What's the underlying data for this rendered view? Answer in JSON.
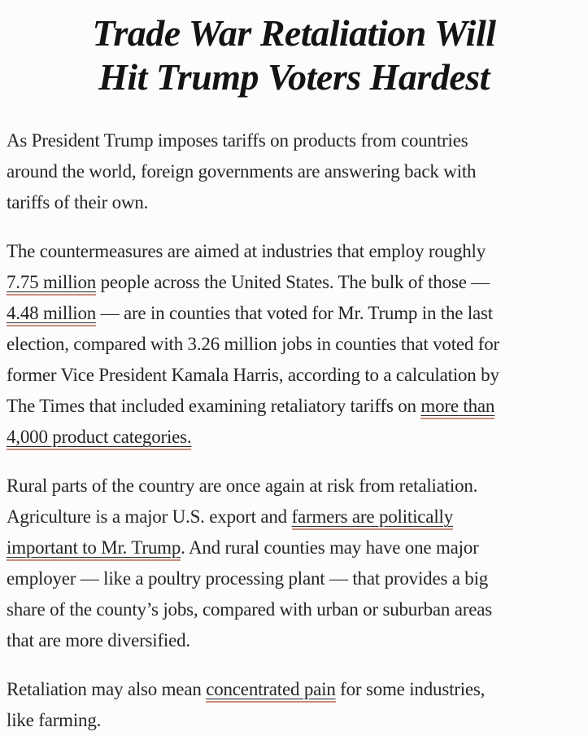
{
  "headline": {
    "lines": [
      "Trade War Retaliation Will",
      "Hit Trump Voters Hardest"
    ]
  },
  "article": {
    "paragraphs": [
      {
        "lines": [
          [
            {
              "t": "As President Trump imposes tariffs on products from countries"
            }
          ],
          [
            {
              "t": "around the world, foreign governments are answering back with"
            }
          ],
          [
            {
              "t": "tariffs of their own."
            }
          ]
        ]
      },
      {
        "lines": [
          [
            {
              "t": "The countermeasures are aimed at industries that employ roughly"
            }
          ],
          [
            {
              "t": "7.75 million",
              "link": true
            },
            {
              "t": " people across the United States. The bulk of those —"
            }
          ],
          [
            {
              "t": "4.48 million",
              "link": true
            },
            {
              "t": " — are in counties that voted for Mr. Trump in the last"
            }
          ],
          [
            {
              "t": "election, compared with 3.26 million jobs in counties that voted for"
            }
          ],
          [
            {
              "t": "former Vice President Kamala Harris, according to a calculation by"
            }
          ],
          [
            {
              "t": "The Times that included examining retaliatory tariffs on "
            },
            {
              "t": "more than",
              "link": true
            }
          ],
          [
            {
              "t": "4,000 product categories.",
              "link": true
            }
          ]
        ]
      },
      {
        "lines": [
          [
            {
              "t": "Rural parts of the country are once again at risk from retaliation."
            }
          ],
          [
            {
              "t": "Agriculture is a major U.S. export and "
            },
            {
              "t": "farmers are politically",
              "link": true
            }
          ],
          [
            {
              "t": "important to Mr. Trump",
              "link": true
            },
            {
              "t": ". And rural counties may have one major"
            }
          ],
          [
            {
              "t": "employer — like a poultry processing plant — that provides a big"
            }
          ],
          [
            {
              "t": "share of the county’s jobs, compared with urban or suburban areas"
            }
          ],
          [
            {
              "t": "that are more diversified."
            }
          ]
        ]
      },
      {
        "lines": [
          [
            {
              "t": "Retaliation may also mean "
            },
            {
              "t": "concentrated pain",
              "link": true
            },
            {
              "t": " for some industries,"
            }
          ],
          [
            {
              "t": "like farming."
            }
          ]
        ]
      }
    ]
  },
  "colors": {
    "text": "#262626",
    "headline": "#141414",
    "link_underline": "#c98e7c",
    "background": "#fcfcfc"
  }
}
